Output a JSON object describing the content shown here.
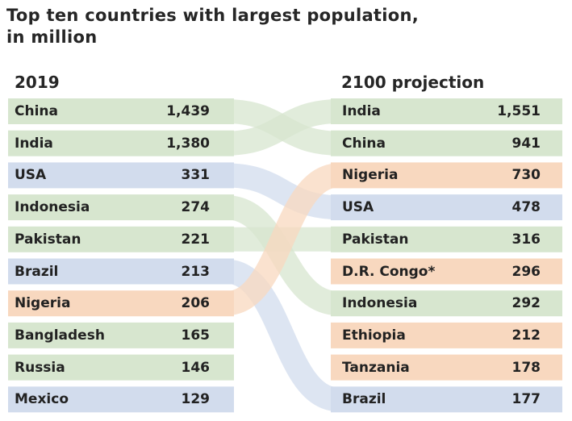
{
  "title": {
    "line1": "Top ten countries with largest population,",
    "line2": "in million"
  },
  "columns": {
    "left": "2019",
    "right": "2100 projection"
  },
  "colors": {
    "asia": "#d7e6cf",
    "americas": "#d2dced",
    "africa": "#f8d8bf"
  },
  "chart_data": {
    "type": "table",
    "title": "Top ten countries with largest population, in million",
    "units": "million",
    "footnote_marker": "*",
    "left_column": {
      "label": "2019",
      "rows": [
        {
          "country": "China",
          "value": 1439,
          "value_label": "1,439",
          "region": "asia"
        },
        {
          "country": "India",
          "value": 1380,
          "value_label": "1,380",
          "region": "asia"
        },
        {
          "country": "USA",
          "value": 331,
          "value_label": "331",
          "region": "americas"
        },
        {
          "country": "Indonesia",
          "value": 274,
          "value_label": "274",
          "region": "asia"
        },
        {
          "country": "Pakistan",
          "value": 221,
          "value_label": "221",
          "region": "asia"
        },
        {
          "country": "Brazil",
          "value": 213,
          "value_label": "213",
          "region": "americas"
        },
        {
          "country": "Nigeria",
          "value": 206,
          "value_label": "206",
          "region": "africa"
        },
        {
          "country": "Bangladesh",
          "value": 165,
          "value_label": "165",
          "region": "asia"
        },
        {
          "country": "Russia",
          "value": 146,
          "value_label": "146",
          "region": "asia"
        },
        {
          "country": "Mexico",
          "value": 129,
          "value_label": "129",
          "region": "americas"
        }
      ]
    },
    "right_column": {
      "label": "2100 projection",
      "rows": [
        {
          "country": "India",
          "value": 1551,
          "value_label": "1,551",
          "region": "asia"
        },
        {
          "country": "China",
          "value": 941,
          "value_label": "941",
          "region": "asia"
        },
        {
          "country": "Nigeria",
          "value": 730,
          "value_label": "730",
          "region": "africa"
        },
        {
          "country": "USA",
          "value": 478,
          "value_label": "478",
          "region": "americas"
        },
        {
          "country": "Pakistan",
          "value": 316,
          "value_label": "316",
          "region": "asia"
        },
        {
          "country": "D.R. Congo*",
          "value": 296,
          "value_label": "296",
          "region": "africa"
        },
        {
          "country": "Indonesia",
          "value": 292,
          "value_label": "292",
          "region": "asia"
        },
        {
          "country": "Ethiopia",
          "value": 212,
          "value_label": "212",
          "region": "africa"
        },
        {
          "country": "Tanzania",
          "value": 178,
          "value_label": "178",
          "region": "africa"
        },
        {
          "country": "Brazil",
          "value": 177,
          "value_label": "177",
          "region": "americas"
        }
      ]
    },
    "links": [
      {
        "country": "China",
        "from_rank": 1,
        "to_rank": 2
      },
      {
        "country": "India",
        "from_rank": 2,
        "to_rank": 1
      },
      {
        "country": "USA",
        "from_rank": 3,
        "to_rank": 4
      },
      {
        "country": "Indonesia",
        "from_rank": 4,
        "to_rank": 7
      },
      {
        "country": "Pakistan",
        "from_rank": 5,
        "to_rank": 5
      },
      {
        "country": "Brazil",
        "from_rank": 6,
        "to_rank": 10
      },
      {
        "country": "Nigeria",
        "from_rank": 7,
        "to_rank": 3
      }
    ]
  }
}
